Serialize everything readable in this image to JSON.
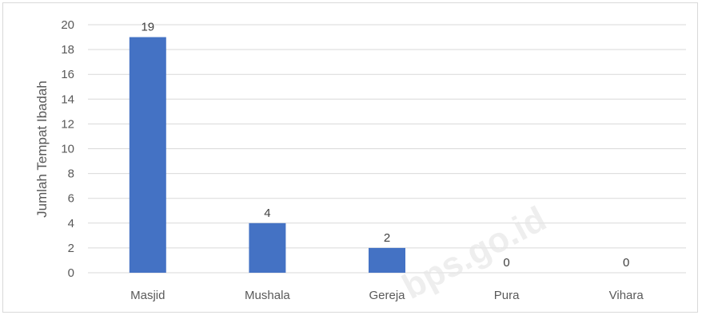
{
  "chart_data": {
    "type": "bar",
    "categories": [
      "Masjid",
      "Mushala",
      "Gereja",
      "Pura",
      "Vihara"
    ],
    "values": [
      19,
      4,
      2,
      0,
      0
    ],
    "ylabel": "Jumlah Tempat Ibadah",
    "xlabel": "",
    "ylim": [
      0,
      20
    ],
    "yticks": [
      0,
      2,
      4,
      6,
      8,
      10,
      12,
      14,
      16,
      18,
      20
    ],
    "grid": true,
    "legend": "none",
    "bar_color": "#4472c4",
    "data_labels": true
  },
  "watermark": "bps.go.id"
}
